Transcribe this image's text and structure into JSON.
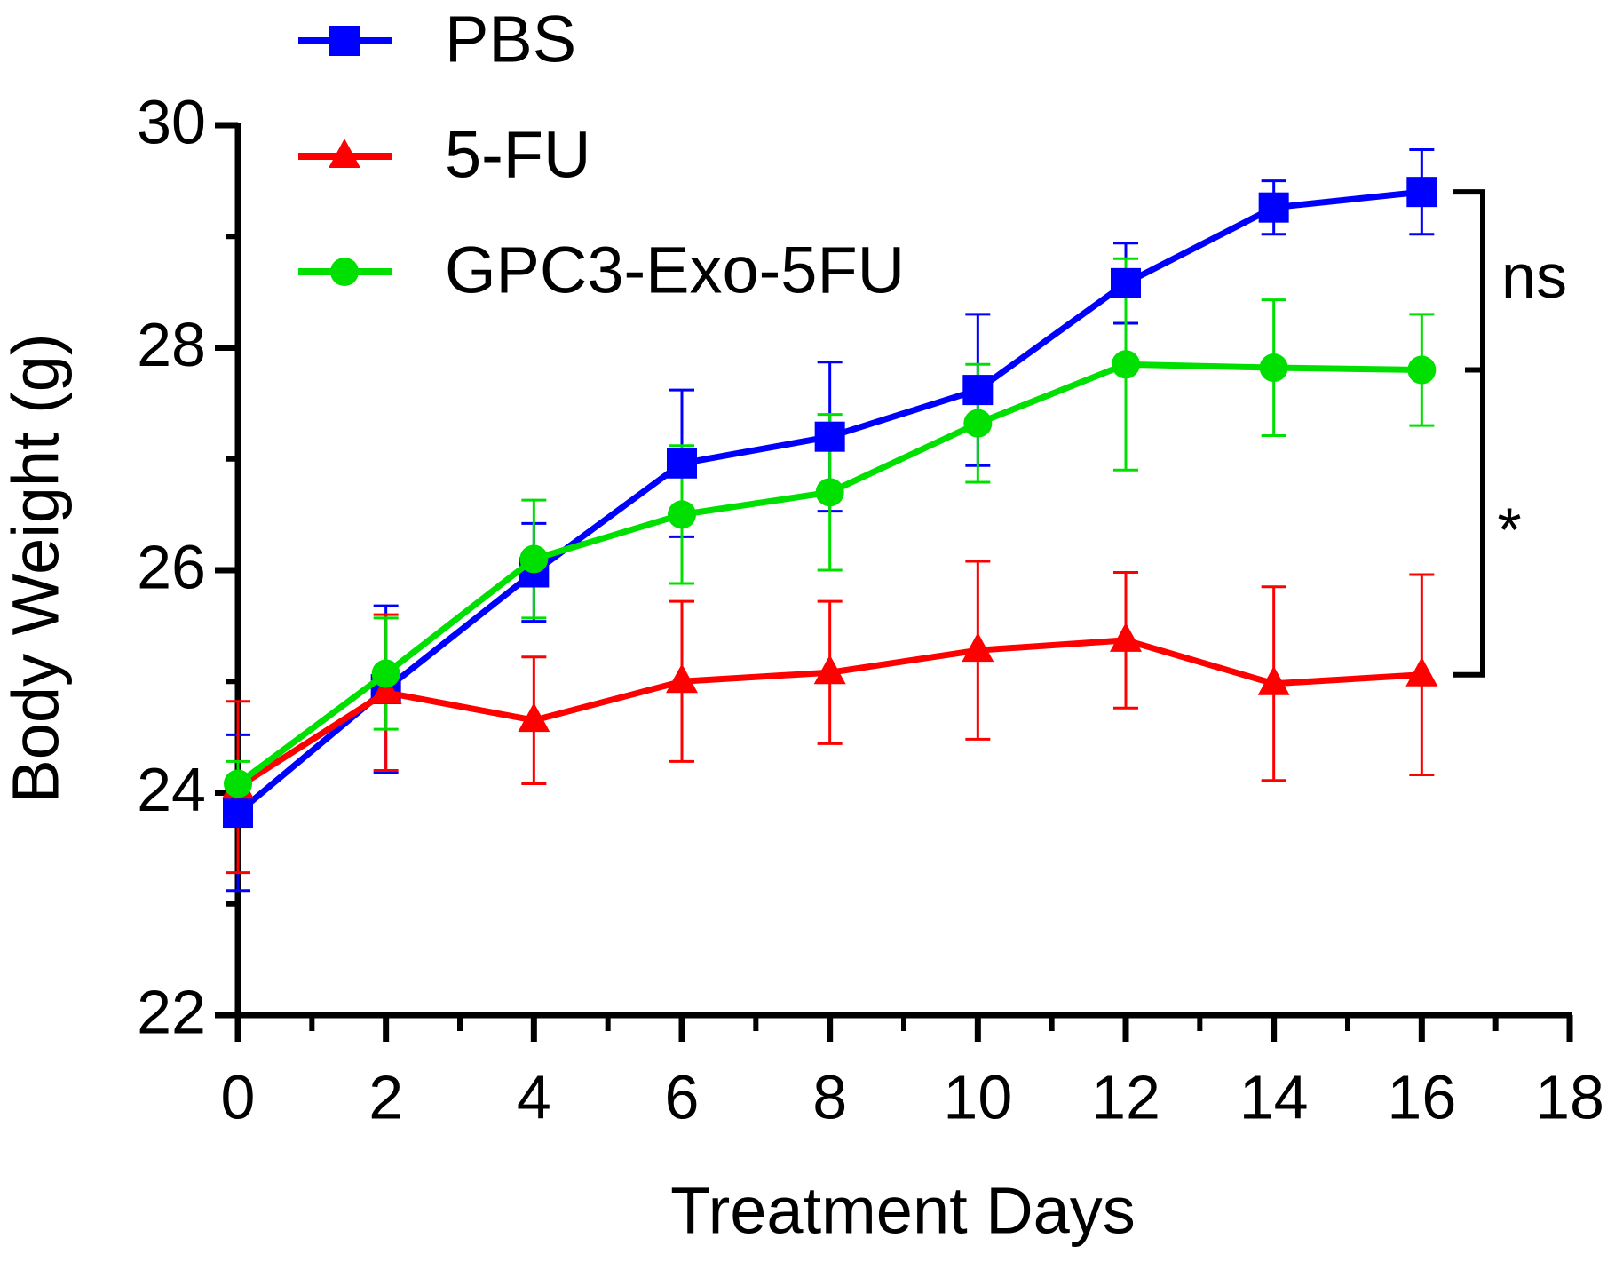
{
  "chart_data": {
    "type": "line",
    "xlabel": "Treatment Days",
    "ylabel": "Body Weight (g)",
    "x": [
      0,
      2,
      4,
      6,
      8,
      10,
      12,
      14,
      16
    ],
    "xlim": [
      0,
      18
    ],
    "xticks": [
      0,
      2,
      4,
      6,
      8,
      10,
      12,
      14,
      16,
      18
    ],
    "ylim": [
      22,
      30
    ],
    "yticks": [
      22,
      24,
      26,
      28,
      30
    ],
    "series": [
      {
        "name": "PBS",
        "color": "#0000ff",
        "marker": "square",
        "values": [
          23.82,
          24.93,
          25.98,
          26.96,
          27.2,
          27.62,
          28.58,
          29.26,
          29.4
        ],
        "errors": [
          0.7,
          0.75,
          0.44,
          0.66,
          0.67,
          0.68,
          0.36,
          0.24,
          0.38
        ]
      },
      {
        "name": "5-FU",
        "color": "#ff0000",
        "marker": "triangle",
        "values": [
          24.05,
          24.9,
          24.65,
          25.0,
          25.08,
          25.28,
          25.37,
          24.98,
          25.06
        ],
        "errors": [
          0.77,
          0.7,
          0.57,
          0.72,
          0.64,
          0.8,
          0.61,
          0.87,
          0.9
        ]
      },
      {
        "name": "GPC3-Exo-5FU",
        "color": "#00e000",
        "marker": "circle",
        "values": [
          24.08,
          25.07,
          26.1,
          26.5,
          26.7,
          27.32,
          27.85,
          27.82,
          27.8
        ],
        "errors": [
          0.2,
          0.5,
          0.53,
          0.62,
          0.7,
          0.53,
          0.95,
          0.61,
          0.5
        ]
      }
    ],
    "annotations": [
      {
        "text": "ns"
      },
      {
        "text": "*"
      }
    ]
  }
}
